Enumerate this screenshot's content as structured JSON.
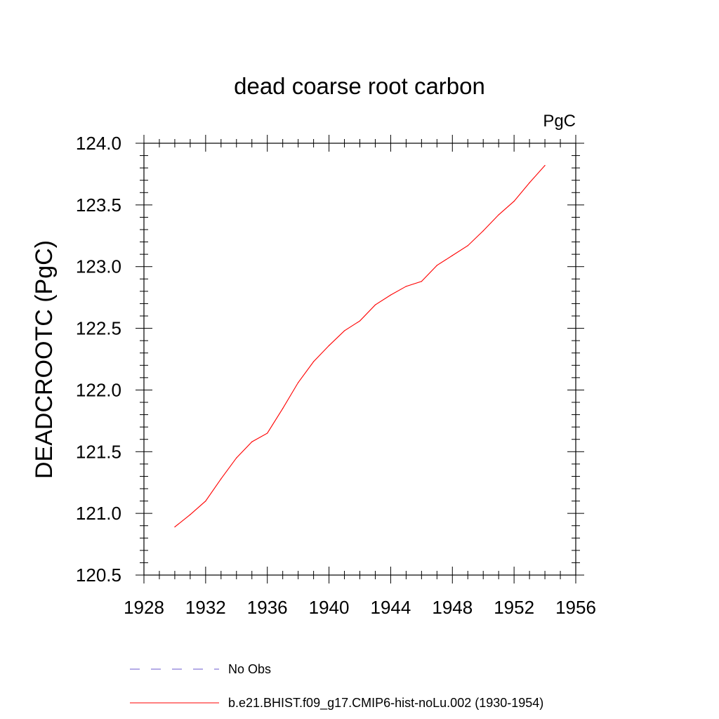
{
  "chart_data": {
    "type": "line",
    "title": "dead coarse root carbon",
    "units_label": "PgC",
    "ylabel": "DEADCROOTC  (PgC)",
    "xlabel": "",
    "xlim": [
      1928,
      1956
    ],
    "ylim": [
      120.5,
      124.0
    ],
    "x_ticks": [
      1928,
      1932,
      1936,
      1940,
      1944,
      1948,
      1952,
      1956
    ],
    "x_tick_labels": [
      "1928",
      "1932",
      "1936",
      "1940",
      "1944",
      "1948",
      "1952",
      "1956"
    ],
    "y_ticks": [
      120.5,
      121.0,
      121.5,
      122.0,
      122.5,
      123.0,
      123.5,
      124.0
    ],
    "y_tick_labels": [
      "120.5",
      "121.0",
      "121.5",
      "122.0",
      "122.5",
      "123.0",
      "123.5",
      "124.0"
    ],
    "grid": false,
    "legend_position": "bottom",
    "series": [
      {
        "name": "b.e21.BHIST.f09_g17.CMIP6-hist-noLu.002 (1930-1954)",
        "color": "#ff0000",
        "style": "solid",
        "x": [
          1930,
          1931,
          1932,
          1933,
          1934,
          1935,
          1936,
          1937,
          1938,
          1939,
          1940,
          1941,
          1942,
          1943,
          1944,
          1945,
          1946,
          1947,
          1948,
          1949,
          1950,
          1951,
          1952,
          1953,
          1954
        ],
        "values": [
          120.89,
          120.99,
          121.1,
          121.28,
          121.45,
          121.58,
          121.65,
          121.85,
          122.06,
          122.23,
          122.36,
          122.48,
          122.56,
          122.69,
          122.77,
          122.84,
          122.88,
          123.01,
          123.09,
          123.17,
          123.29,
          123.42,
          123.53,
          123.68,
          123.82
        ]
      }
    ],
    "legend": [
      {
        "label": "No Obs",
        "color": "#6a5acd",
        "style": "dashed"
      },
      {
        "label": "b.e21.BHIST.f09_g17.CMIP6-hist-noLu.002 (1930-1954)",
        "color": "#ff0000",
        "style": "solid"
      }
    ]
  }
}
